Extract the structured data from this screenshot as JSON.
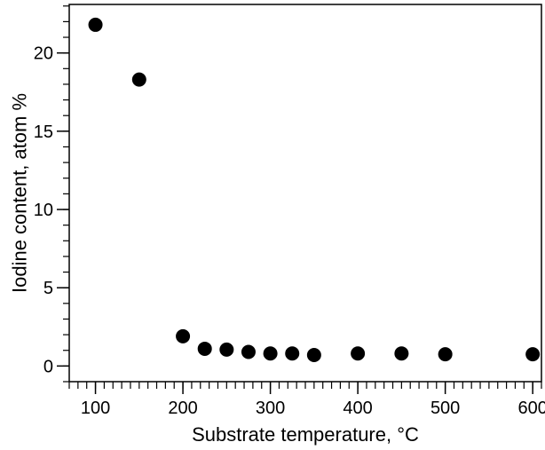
{
  "chart_data": {
    "type": "scatter",
    "title": "",
    "xlabel": "Substrate temperature, °C",
    "ylabel": "Iodine content, atom %",
    "xlim": [
      70,
      610
    ],
    "ylim": [
      -1,
      23.1
    ],
    "x_ticks": [
      100,
      200,
      300,
      400,
      500,
      600
    ],
    "y_ticks": [
      0,
      5,
      10,
      15,
      20
    ],
    "x_minor_step": 10,
    "y_minor_step": 1,
    "grid": false,
    "legend": "none",
    "marker_color": "#000000",
    "series": [
      {
        "x": [
          100,
          150,
          200,
          225,
          250,
          275,
          300,
          325,
          350,
          400,
          450,
          500,
          600
        ],
        "y": [
          21.8,
          18.3,
          1.9,
          1.1,
          1.05,
          0.9,
          0.8,
          0.8,
          0.7,
          0.8,
          0.8,
          0.75,
          0.75
        ]
      }
    ]
  }
}
